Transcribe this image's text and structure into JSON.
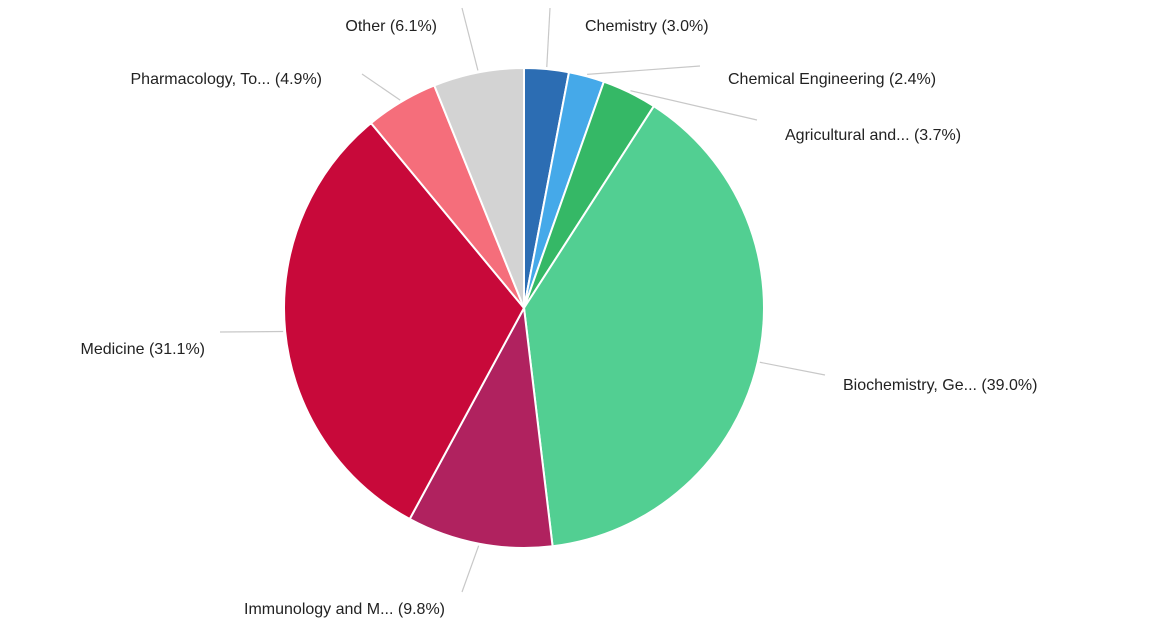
{
  "chart_data": {
    "type": "pie",
    "labels": [
      "Chemistry (3.0%)",
      "Chemical Engineering (2.4%)",
      "Agricultural and... (3.7%)",
      "Biochemistry, Ge... (39.0%)",
      "Immunology and M... (9.8%)",
      "Medicine (31.1%)",
      "Pharmacology, To... (4.9%)",
      "Other (6.1%)"
    ],
    "values": [
      3.0,
      2.4,
      3.7,
      39.0,
      9.8,
      31.1,
      4.9,
      6.1
    ],
    "colors": [
      "#2c6db3",
      "#45a9e9",
      "#35b866",
      "#52cf92",
      "#b0225f",
      "#c8093a",
      "#f56e7b",
      "#d3d3d3"
    ]
  }
}
